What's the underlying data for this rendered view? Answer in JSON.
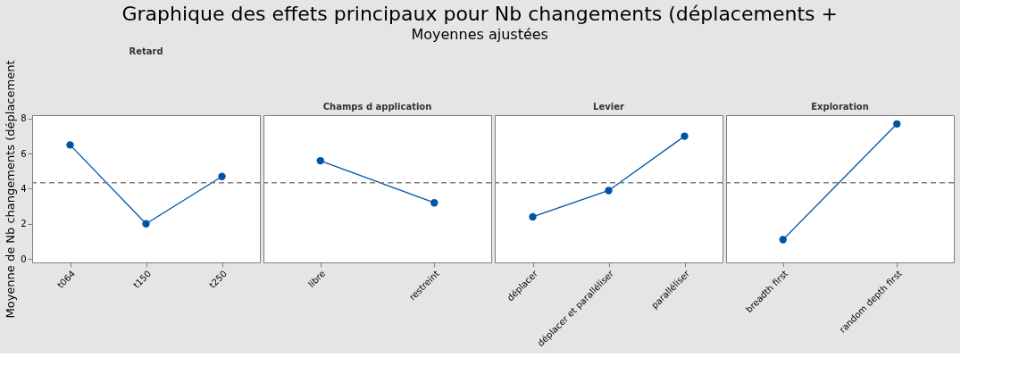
{
  "chart_data": [
    {
      "type": "line",
      "title": "Retard",
      "ylabel": "Moyenne de Nb changements (déplacement",
      "annotations": [
        "Graphique des effets principaux pour Nb changements (déplacements +",
        "Moyennes ajustées"
      ],
      "categories": [
        "t064",
        "t150",
        "t250"
      ],
      "values": [
        6.5,
        2.0,
        4.7
      ],
      "color": "#0054a6",
      "marker": "circle",
      "ylim": [
        -0.2,
        8.2
      ],
      "yticks": [
        0,
        2,
        4,
        6,
        8
      ],
      "grid": false,
      "ref_lines": [
        {
          "axis": "y",
          "value": 4.35,
          "color": "#808080",
          "line_style": "dashed"
        }
      ]
    },
    {
      "type": "line",
      "title": "Champs d application",
      "categories": [
        "libre",
        "restreint"
      ],
      "values": [
        5.6,
        3.2
      ],
      "color": "#0054a6",
      "marker": "circle",
      "ylim": [
        -0.2,
        8.2
      ],
      "yticks": [
        0,
        2,
        4,
        6,
        8
      ],
      "tick_labels": "x",
      "grid": false,
      "ref_lines": [
        {
          "axis": "y",
          "value": 4.35,
          "color": "#808080",
          "line_style": "dashed"
        }
      ]
    },
    {
      "type": "line",
      "title": "Levier",
      "categories": [
        "déplacer",
        "déplacer et paralléliser",
        "paralléliser"
      ],
      "values": [
        2.4,
        3.9,
        7.0
      ],
      "color": "#0054a6",
      "marker": "circle",
      "ylim": [
        -0.2,
        8.2
      ],
      "yticks": [
        0,
        2,
        4,
        6,
        8
      ],
      "tick_labels": "x",
      "grid": false,
      "ref_lines": [
        {
          "axis": "y",
          "value": 4.35,
          "color": "#808080",
          "line_style": "dashed"
        }
      ]
    },
    {
      "type": "line",
      "title": "Exploration",
      "categories": [
        "breadth first",
        "random depth first"
      ],
      "values": [
        1.1,
        7.7
      ],
      "color": "#0054a6",
      "marker": "circle",
      "ylim": [
        -0.2,
        8.2
      ],
      "yticks": [
        0,
        2,
        4,
        6,
        8
      ],
      "tick_labels": "x",
      "grid": false,
      "ref_lines": [
        {
          "axis": "y",
          "value": 4.35,
          "color": "#808080",
          "line_style": "dashed"
        }
      ]
    }
  ]
}
